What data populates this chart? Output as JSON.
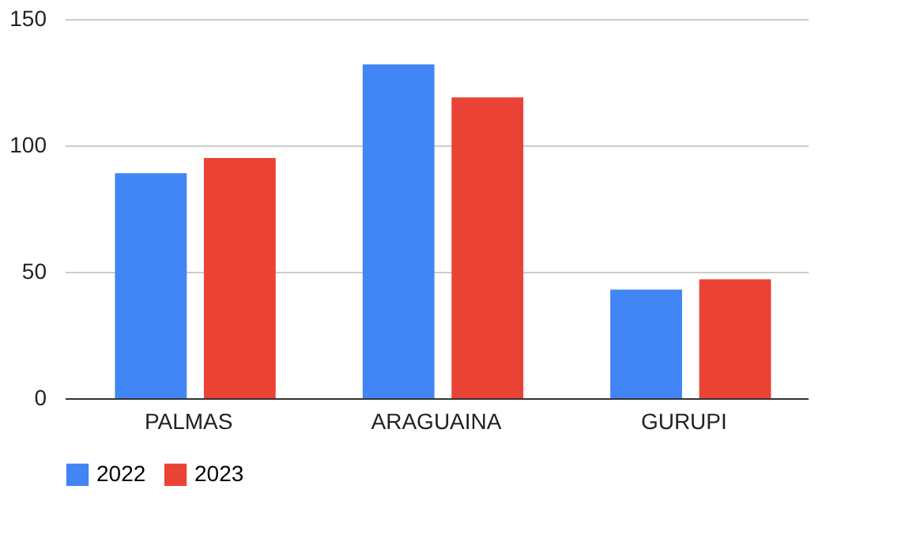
{
  "chart_data": {
    "type": "bar",
    "categories": [
      "PALMAS",
      "ARAGUAINA",
      "GURUPI"
    ],
    "series": [
      {
        "name": "2022",
        "color": "#4285f4",
        "values": [
          89,
          132,
          43
        ]
      },
      {
        "name": "2023",
        "color": "#ea4335",
        "values": [
          95,
          119,
          47
        ]
      }
    ],
    "ylim": [
      0,
      150
    ],
    "yticks": [
      0,
      50,
      100,
      150
    ],
    "grid": "y",
    "legend": "bottom"
  }
}
